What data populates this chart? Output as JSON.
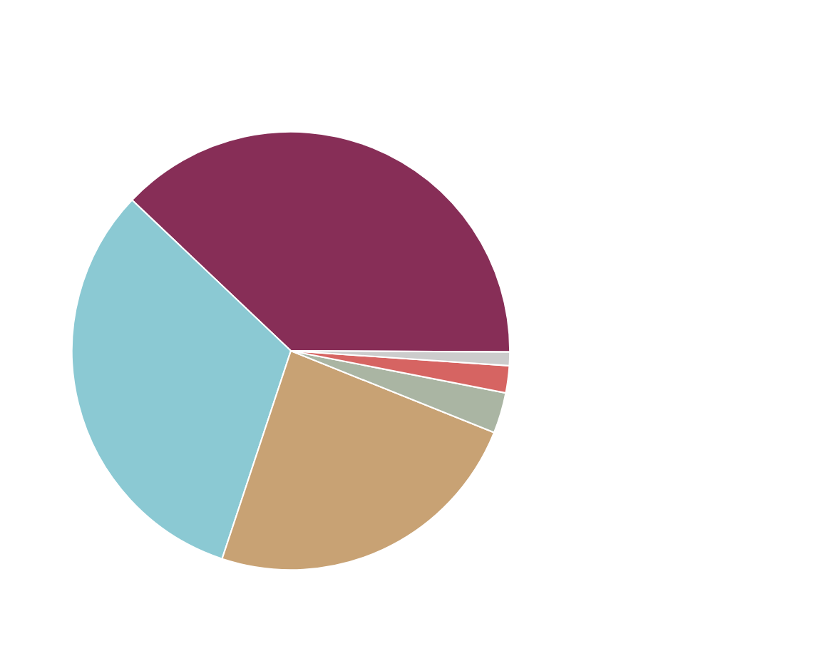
{
  "chart_data": {
    "type": "pie",
    "categories": [
      null,
      null,
      null,
      null,
      null,
      null
    ],
    "values": [
      38,
      32,
      24,
      3,
      2,
      1
    ],
    "colors": [
      "#872e57",
      "#8bc9d3",
      "#c8a274",
      "#aab5a3",
      "#d66462",
      "#cccccc"
    ]
  }
}
